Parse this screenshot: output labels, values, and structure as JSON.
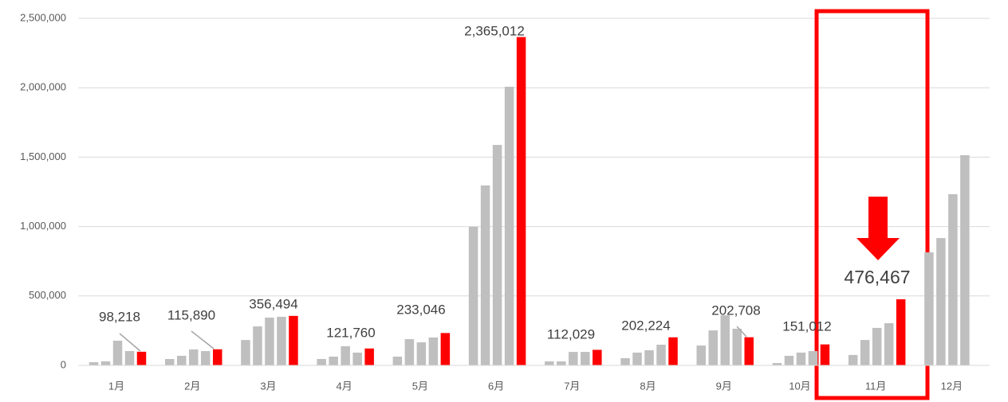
{
  "chart_data": {
    "type": "bar",
    "categories": [
      "1月",
      "2月",
      "3月",
      "4月",
      "5月",
      "6月",
      "7月",
      "8月",
      "9月",
      "10月",
      "11月",
      "12月"
    ],
    "series": [
      {
        "color": "#bfbfbf",
        "values": [
          23000,
          46000,
          183000,
          46000,
          63000,
          998000,
          29000,
          52000,
          143000,
          17000,
          75000,
          814000
        ]
      },
      {
        "color": "#bfbfbf",
        "values": [
          29000,
          69000,
          281000,
          63000,
          189000,
          1296000,
          29000,
          92000,
          252000,
          69000,
          183000,
          917000
        ]
      },
      {
        "color": "#bfbfbf",
        "values": [
          178000,
          115000,
          344000,
          138000,
          166000,
          1588000,
          97000,
          109000,
          361000,
          92000,
          270000,
          1233000
        ]
      },
      {
        "color": "#bfbfbf",
        "values": [
          103000,
          103000,
          350000,
          92000,
          201000,
          2007000,
          97000,
          149000,
          264000,
          103000,
          304000,
          1514000
        ]
      },
      {
        "color": "#ff0000",
        "values": [
          98218,
          115890,
          356494,
          121760,
          233046,
          2365012,
          112029,
          202224,
          202708,
          151012,
          476467,
          null
        ],
        "value_labels": [
          "98,218",
          "115,890",
          "356,494",
          "121,760",
          "233,046",
          "2,365,012",
          "112,029",
          "202,224",
          "202,708",
          "151,012",
          "476,467",
          null
        ]
      }
    ],
    "ylim": [
      0,
      2500000
    ],
    "yticks": [
      0,
      {
        "value": 500000,
        "label": "500,000"
      },
      {
        "value": 1000000,
        "label": "1,000,000"
      },
      {
        "value": 1500000,
        "label": "1,500,000"
      },
      {
        "value": 2000000,
        "label": "2,000,000"
      },
      {
        "value": 2500000,
        "label": "2,500,000"
      }
    ],
    "grid": true
  }
}
